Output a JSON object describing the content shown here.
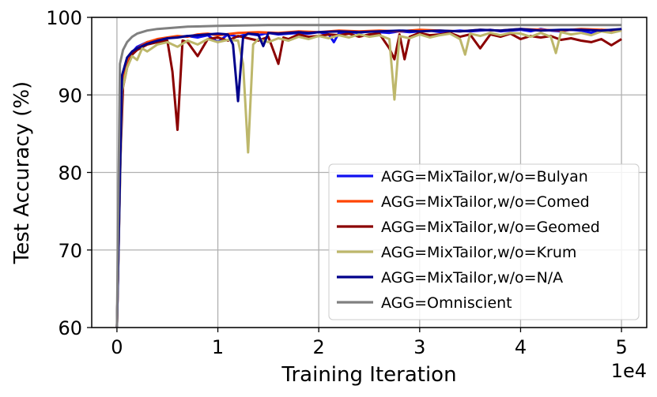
{
  "chart_data": {
    "type": "line",
    "xlabel": "Training Iteration",
    "ylabel": "Test Accuracy (%)",
    "x_scale_label": "1e4",
    "xlim": [
      -0.25,
      5.25
    ],
    "ylim": [
      60,
      100
    ],
    "x_scale": 10000,
    "x_ticks": [
      0,
      1,
      2,
      3,
      4,
      5
    ],
    "x_tick_labels": [
      "0",
      "1",
      "2",
      "3",
      "4",
      "5"
    ],
    "y_ticks": [
      60,
      70,
      80,
      90,
      100
    ],
    "y_tick_labels": [
      "60",
      "70",
      "80",
      "90",
      "100"
    ],
    "grid": true,
    "legend_position": "lower-right",
    "series": [
      {
        "name": "AGG=MixTailor,w/o=Bulyan",
        "color": "#1010f0",
        "x": [
          0,
          0.05,
          0.1,
          0.15,
          0.2,
          0.3,
          0.4,
          0.5,
          0.6,
          0.7,
          0.8,
          0.9,
          1.0,
          1.1,
          1.2,
          1.3,
          1.4,
          1.5,
          1.6,
          1.7,
          1.8,
          1.9,
          2.0,
          2.1,
          2.15,
          2.2,
          2.3,
          2.4,
          2.5,
          2.6,
          2.7,
          2.8,
          2.9,
          3.0,
          3.1,
          3.2,
          3.3,
          3.4,
          3.5,
          3.6,
          3.7,
          3.8,
          3.9,
          4.0,
          4.1,
          4.2,
          4.3,
          4.4,
          4.5,
          4.6,
          4.7,
          4.8,
          4.9,
          5.0
        ],
        "y": [
          60,
          92,
          94.5,
          95.5,
          96.2,
          96.8,
          97.0,
          97.3,
          97.5,
          97.6,
          97.4,
          97.7,
          96.8,
          97.8,
          97.5,
          97.9,
          97.7,
          98.0,
          97.8,
          97.9,
          98.0,
          97.9,
          98.1,
          97.8,
          96.8,
          98.0,
          98.1,
          98.0,
          98.2,
          98.1,
          98.0,
          98.2,
          98.1,
          98.2,
          98.3,
          98.1,
          98.2,
          98.3,
          98.2,
          98.3,
          98.4,
          98.2,
          98.3,
          98.4,
          98.2,
          98.5,
          98.3,
          98.2,
          98.4,
          98.3,
          98.0,
          98.4,
          98.2,
          98.5
        ]
      },
      {
        "name": "AGG=MixTailor,w/o=Comed",
        "color": "#ff4500",
        "x": [
          0,
          0.05,
          0.1,
          0.15,
          0.2,
          0.3,
          0.4,
          0.5,
          0.6,
          0.7,
          0.8,
          0.9,
          1.0,
          1.2,
          1.4,
          1.6,
          1.8,
          2.0,
          2.2,
          2.4,
          2.6,
          2.8,
          3.0,
          3.2,
          3.4,
          3.6,
          3.8,
          4.0,
          4.2,
          4.4,
          4.6,
          4.8,
          5.0
        ],
        "y": [
          60,
          91.5,
          94.2,
          95.5,
          96.0,
          96.8,
          97.2,
          97.4,
          97.6,
          97.5,
          97.8,
          97.9,
          97.7,
          98.0,
          98.1,
          98.0,
          98.2,
          98.1,
          98.3,
          98.2,
          98.3,
          98.2,
          98.4,
          98.3,
          98.2,
          98.4,
          98.3,
          98.5,
          98.4,
          98.3,
          98.5,
          98.4,
          98.3
        ]
      },
      {
        "name": "AGG=MixTailor,w/o=Geomed",
        "color": "#8b0000",
        "x": [
          0,
          0.03,
          0.06,
          0.1,
          0.15,
          0.2,
          0.3,
          0.4,
          0.5,
          0.55,
          0.6,
          0.65,
          0.7,
          0.8,
          0.9,
          1.0,
          1.1,
          1.2,
          1.3,
          1.4,
          1.5,
          1.6,
          1.65,
          1.7,
          1.8,
          1.9,
          2.0,
          2.1,
          2.2,
          2.3,
          2.4,
          2.5,
          2.6,
          2.7,
          2.75,
          2.8,
          2.85,
          2.9,
          3.0,
          3.1,
          3.2,
          3.3,
          3.4,
          3.5,
          3.6,
          3.7,
          3.8,
          3.9,
          4.0,
          4.1,
          4.2,
          4.3,
          4.4,
          4.5,
          4.6,
          4.7,
          4.8,
          4.9,
          5.0
        ],
        "y": [
          60,
          80,
          91,
          93.5,
          95.2,
          95.8,
          96.5,
          96.8,
          97.0,
          93.0,
          85.5,
          97.0,
          96.8,
          95.0,
          97.2,
          97.4,
          97.0,
          97.6,
          97.3,
          97.0,
          97.5,
          94.0,
          97.4,
          97.2,
          97.8,
          97.5,
          97.6,
          97.8,
          97.7,
          97.9,
          97.5,
          97.8,
          97.9,
          96.0,
          94.6,
          97.8,
          94.6,
          97.5,
          98.0,
          97.7,
          97.8,
          98.0,
          97.5,
          97.8,
          96.0,
          97.8,
          97.5,
          97.9,
          97.2,
          97.6,
          97.4,
          97.6,
          97.1,
          97.3,
          97.0,
          96.8,
          97.2,
          96.4,
          97.2
        ]
      },
      {
        "name": "AGG=MixTailor,w/o=Krum",
        "color": "#bdb76b",
        "x": [
          0,
          0.05,
          0.1,
          0.15,
          0.2,
          0.25,
          0.3,
          0.4,
          0.5,
          0.6,
          0.7,
          0.8,
          0.9,
          1.0,
          1.1,
          1.2,
          1.25,
          1.3,
          1.35,
          1.4,
          1.5,
          1.6,
          1.7,
          1.8,
          1.9,
          2.0,
          2.1,
          2.2,
          2.3,
          2.4,
          2.5,
          2.6,
          2.7,
          2.75,
          2.8,
          2.9,
          3.0,
          3.1,
          3.2,
          3.3,
          3.4,
          3.45,
          3.5,
          3.6,
          3.7,
          3.8,
          3.9,
          4.0,
          4.1,
          4.2,
          4.3,
          4.35,
          4.4,
          4.5,
          4.6,
          4.7,
          4.8,
          4.9,
          5.0
        ],
        "y": [
          60,
          90.5,
          93.5,
          95.0,
          94.5,
          96.0,
          95.6,
          96.5,
          96.8,
          96.2,
          97.0,
          96.5,
          97.2,
          96.8,
          97.1,
          97.0,
          94.0,
          82.6,
          96.5,
          97.2,
          96.8,
          97.3,
          97.0,
          97.5,
          97.2,
          97.6,
          97.3,
          97.7,
          97.4,
          97.8,
          97.5,
          97.7,
          97.2,
          89.4,
          97.6,
          97.3,
          97.8,
          97.4,
          97.7,
          97.9,
          97.2,
          95.2,
          97.9,
          97.6,
          98.0,
          97.7,
          98.0,
          97.9,
          97.5,
          98.0,
          97.5,
          95.4,
          98.1,
          97.8,
          98.0,
          97.7,
          98.2,
          98.0,
          98.3
        ]
      },
      {
        "name": "AGG=MixTailor,w/o=N/A",
        "color": "#00008b",
        "x": [
          0,
          0.05,
          0.1,
          0.15,
          0.2,
          0.3,
          0.4,
          0.5,
          0.6,
          0.7,
          0.8,
          0.9,
          1.0,
          1.1,
          1.15,
          1.2,
          1.25,
          1.3,
          1.4,
          1.45,
          1.5,
          1.6,
          1.7,
          1.8,
          1.9,
          2.0,
          2.2,
          2.4,
          2.6,
          2.8,
          3.0,
          3.2,
          3.4,
          3.6,
          3.8,
          4.0,
          4.2,
          4.4,
          4.6,
          4.8,
          5.0
        ],
        "y": [
          60,
          92.5,
          94.8,
          95.6,
          96.0,
          96.6,
          97.0,
          97.3,
          97.4,
          97.6,
          97.7,
          97.8,
          97.9,
          97.8,
          96.5,
          89.2,
          97.5,
          97.9,
          97.8,
          96.3,
          98.0,
          97.9,
          98.0,
          98.1,
          98.0,
          98.1,
          98.2,
          98.1,
          98.2,
          98.3,
          98.2,
          98.3,
          98.2,
          98.4,
          98.3,
          98.5,
          98.3,
          98.4,
          98.4,
          98.3,
          98.5
        ]
      },
      {
        "name": "AGG=Omniscient",
        "color": "#808080",
        "x": [
          0,
          0.03,
          0.06,
          0.1,
          0.15,
          0.2,
          0.3,
          0.4,
          0.5,
          0.7,
          1.0,
          1.5,
          2.0,
          2.5,
          3.0,
          3.5,
          4.0,
          4.5,
          5.0
        ],
        "y": [
          60,
          94.0,
          95.8,
          96.8,
          97.5,
          97.9,
          98.3,
          98.5,
          98.6,
          98.8,
          98.9,
          99.0,
          99.0,
          99.0,
          99.0,
          99.0,
          99.0,
          99.0,
          99.0
        ]
      }
    ]
  }
}
